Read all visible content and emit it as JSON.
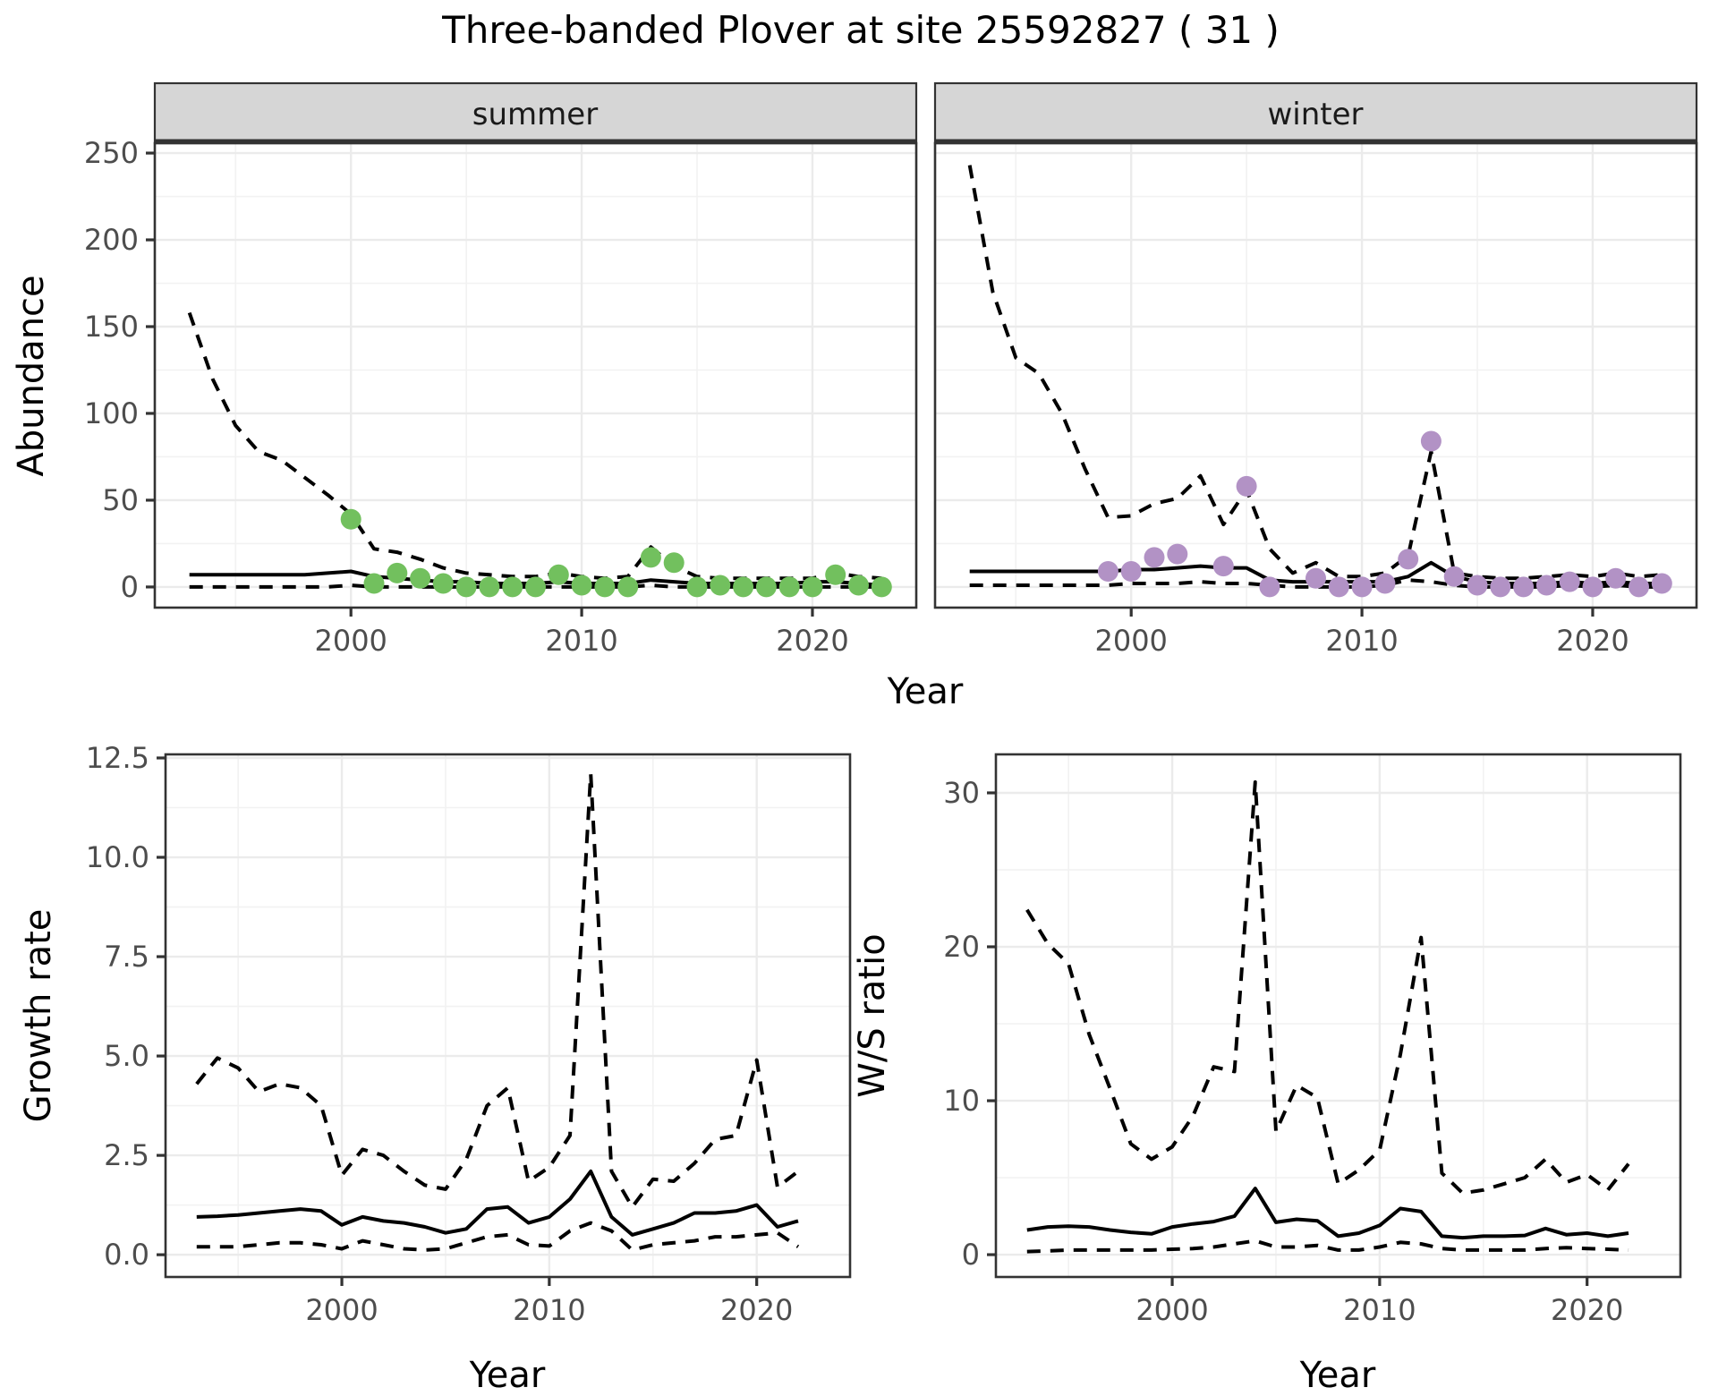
{
  "title": "Three-banded Plover at site 25592827 ( 31 )",
  "axes": {
    "y_top": "Abundance",
    "x_shared": "Year",
    "y_growth": "Growth rate",
    "x_growth": "Year",
    "y_ws": "W/S ratio",
    "x_ws": "Year"
  },
  "colors": {
    "summer_point": "#72c05e",
    "winter_point": "#b292c5",
    "line": "#000000",
    "grid_major": "#ebebeb",
    "grid_minor": "#f2f2f2",
    "strip_bg": "#d6d6d6",
    "panel_border": "#333333",
    "tick_text": "#4d4d4d"
  },
  "chart_data": [
    {
      "type": "line",
      "facet_label": "summer",
      "xlabel": "Year",
      "ylabel": "Abundance",
      "ylim": [
        0,
        250
      ],
      "x_tick_values": [
        2000,
        2010,
        2020
      ],
      "x_tick_labels": [
        "2000",
        "2010",
        "2020"
      ],
      "y_tick_values": [
        0,
        50,
        100,
        150,
        200,
        250
      ],
      "y_tick_labels": [
        "0",
        "50",
        "100",
        "150",
        "200",
        "250"
      ],
      "years": [
        1993,
        1994,
        1995,
        1996,
        1997,
        1998,
        1999,
        2000,
        2001,
        2002,
        2003,
        2004,
        2005,
        2006,
        2007,
        2008,
        2009,
        2010,
        2011,
        2012,
        2013,
        2014,
        2015,
        2016,
        2017,
        2018,
        2019,
        2020,
        2021,
        2022,
        2023
      ],
      "series": [
        {
          "name": "median",
          "style": "solid",
          "values": [
            7,
            7,
            7,
            7,
            7,
            7,
            8,
            9,
            6,
            5,
            4,
            3,
            3,
            2,
            2,
            2,
            3,
            2,
            2,
            2,
            4,
            3,
            2,
            2,
            2,
            2,
            2,
            3,
            3,
            2,
            1
          ]
        },
        {
          "name": "upper_ci",
          "style": "dashed",
          "values": [
            158,
            120,
            93,
            78,
            73,
            63,
            53,
            42,
            22,
            20,
            16,
            11,
            8,
            7,
            6,
            6,
            8,
            6,
            5,
            6,
            23,
            12,
            6,
            5,
            5,
            5,
            5,
            5,
            8,
            6,
            5
          ]
        },
        {
          "name": "lower_ci",
          "style": "dashed",
          "values": [
            0,
            0,
            0,
            0,
            0,
            0,
            0,
            1,
            0,
            0,
            0,
            0,
            0,
            0,
            0,
            0,
            0,
            0,
            0,
            0,
            1,
            0,
            0,
            0,
            0,
            0,
            0,
            0,
            0,
            0,
            0
          ]
        }
      ],
      "points": {
        "color_key": "summer_point",
        "years": [
          2000,
          2001,
          2002,
          2003,
          2004,
          2005,
          2006,
          2007,
          2008,
          2009,
          2010,
          2011,
          2012,
          2013,
          2014,
          2015,
          2016,
          2017,
          2018,
          2019,
          2020,
          2021,
          2022,
          2023
        ],
        "values": [
          39,
          2,
          8,
          5,
          2,
          0,
          0,
          0,
          0,
          7,
          1,
          0,
          0,
          17,
          14,
          0,
          1,
          0,
          0,
          0,
          0,
          7,
          1,
          0
        ]
      }
    },
    {
      "type": "line",
      "facet_label": "winter",
      "xlabel": "Year",
      "ylabel": "Abundance",
      "ylim": [
        0,
        250
      ],
      "x_tick_values": [
        2000,
        2010,
        2020
      ],
      "x_tick_labels": [
        "2000",
        "2010",
        "2020"
      ],
      "y_tick_values": [
        0,
        50,
        100,
        150,
        200,
        250
      ],
      "y_tick_labels": [
        "0",
        "50",
        "100",
        "150",
        "200",
        "250"
      ],
      "years": [
        1993,
        1994,
        1995,
        1996,
        1997,
        1998,
        1999,
        2000,
        2001,
        2002,
        2003,
        2004,
        2005,
        2006,
        2007,
        2008,
        2009,
        2010,
        2011,
        2012,
        2013,
        2014,
        2015,
        2016,
        2017,
        2018,
        2019,
        2020,
        2021,
        2022,
        2023
      ],
      "series": [
        {
          "name": "median",
          "style": "solid",
          "values": [
            9,
            9,
            9,
            9,
            9,
            9,
            9,
            10,
            10,
            11,
            12,
            11,
            11,
            4,
            3,
            3,
            3,
            3,
            3,
            6,
            14,
            6,
            3,
            2,
            2,
            2,
            3,
            2,
            3,
            2,
            2
          ]
        },
        {
          "name": "upper_ci",
          "style": "dashed",
          "values": [
            243,
            170,
            132,
            123,
            100,
            68,
            40,
            41,
            48,
            51,
            64,
            36,
            56,
            22,
            8,
            14,
            6,
            6,
            8,
            18,
            78,
            8,
            6,
            5,
            5,
            6,
            7,
            6,
            8,
            6,
            7
          ]
        },
        {
          "name": "lower_ci",
          "style": "dashed",
          "values": [
            1,
            1,
            1,
            1,
            1,
            1,
            1,
            2,
            2,
            2,
            3,
            2,
            2,
            1,
            0,
            0,
            0,
            0,
            1,
            4,
            3,
            1,
            0,
            0,
            0,
            0,
            1,
            0,
            1,
            0,
            0
          ]
        }
      ],
      "points": {
        "color_key": "winter_point",
        "years": [
          1999,
          2000,
          2001,
          2002,
          2004,
          2005,
          2006,
          2008,
          2009,
          2010,
          2011,
          2012,
          2013,
          2014,
          2015,
          2016,
          2017,
          2018,
          2019,
          2020,
          2021,
          2022,
          2023
        ],
        "values": [
          9,
          9,
          17,
          19,
          12,
          58,
          0,
          5,
          0,
          0,
          2,
          16,
          84,
          6,
          1,
          0,
          0,
          1,
          3,
          0,
          5,
          0,
          2
        ]
      }
    },
    {
      "type": "line",
      "facet_label": "",
      "xlabel": "Year",
      "ylabel": "Growth rate",
      "ylim": [
        0,
        12.5
      ],
      "x_tick_values": [
        2000,
        2010,
        2020
      ],
      "x_tick_labels": [
        "2000",
        "2010",
        "2020"
      ],
      "y_tick_values": [
        0,
        2.5,
        5,
        7.5,
        10,
        12.5
      ],
      "y_tick_labels": [
        "0.0",
        "2.5",
        "5.0",
        "7.5",
        "10.0",
        "12.5"
      ],
      "years": [
        1993,
        1994,
        1995,
        1996,
        1997,
        1998,
        1999,
        2000,
        2001,
        2002,
        2003,
        2004,
        2005,
        2006,
        2007,
        2008,
        2009,
        2010,
        2011,
        2012,
        2013,
        2014,
        2015,
        2016,
        2017,
        2018,
        2019,
        2020,
        2021,
        2022
      ],
      "series": [
        {
          "name": "median",
          "style": "solid",
          "values": [
            0.95,
            0.97,
            1.0,
            1.05,
            1.1,
            1.15,
            1.1,
            0.75,
            0.95,
            0.85,
            0.8,
            0.7,
            0.55,
            0.65,
            1.15,
            1.2,
            0.8,
            0.95,
            1.4,
            2.1,
            0.95,
            0.5,
            0.65,
            0.8,
            1.05,
            1.05,
            1.1,
            1.25,
            0.7,
            0.85
          ]
        },
        {
          "name": "upper_ci",
          "style": "dashed",
          "values": [
            4.3,
            4.95,
            4.7,
            4.1,
            4.3,
            4.2,
            3.75,
            2.0,
            2.65,
            2.5,
            2.1,
            1.75,
            1.65,
            2.4,
            3.75,
            4.2,
            1.85,
            2.2,
            3.0,
            12.1,
            2.1,
            1.2,
            1.9,
            1.85,
            2.3,
            2.9,
            3.0,
            4.9,
            1.7,
            2.1
          ]
        },
        {
          "name": "lower_ci",
          "style": "dashed",
          "values": [
            0.2,
            0.2,
            0.2,
            0.25,
            0.3,
            0.3,
            0.25,
            0.15,
            0.35,
            0.25,
            0.15,
            0.12,
            0.15,
            0.3,
            0.45,
            0.5,
            0.25,
            0.22,
            0.6,
            0.8,
            0.6,
            0.12,
            0.25,
            0.3,
            0.35,
            0.45,
            0.45,
            0.5,
            0.55,
            0.2
          ]
        }
      ]
    },
    {
      "type": "line",
      "facet_label": "",
      "xlabel": "Year",
      "ylabel": "W/S ratio",
      "ylim": [
        0,
        30
      ],
      "x_tick_values": [
        2000,
        2010,
        2020
      ],
      "x_tick_labels": [
        "2000",
        "2010",
        "2020"
      ],
      "y_tick_values": [
        0,
        10,
        20,
        30
      ],
      "y_tick_labels": [
        "0",
        "10",
        "20",
        "30"
      ],
      "years": [
        1993,
        1994,
        1995,
        1996,
        1997,
        1998,
        1999,
        2000,
        2001,
        2002,
        2003,
        2004,
        2005,
        2006,
        2007,
        2008,
        2009,
        2010,
        2011,
        2012,
        2013,
        2014,
        2015,
        2016,
        2017,
        2018,
        2019,
        2020,
        2021,
        2022
      ],
      "series": [
        {
          "name": "median",
          "style": "solid",
          "values": [
            1.6,
            1.8,
            1.85,
            1.8,
            1.6,
            1.45,
            1.35,
            1.8,
            2.0,
            2.15,
            2.5,
            4.3,
            2.1,
            2.3,
            2.2,
            1.2,
            1.4,
            1.9,
            3.0,
            2.8,
            1.2,
            1.1,
            1.2,
            1.2,
            1.25,
            1.7,
            1.3,
            1.4,
            1.2,
            1.4
          ]
        },
        {
          "name": "upper_ci",
          "style": "dashed",
          "values": [
            22.4,
            20.2,
            18.9,
            14.3,
            10.8,
            7.2,
            6.2,
            7.0,
            9.0,
            12.2,
            11.9,
            30.7,
            8.0,
            11.0,
            10.2,
            4.6,
            5.5,
            6.8,
            13.0,
            20.6,
            5.3,
            4.0,
            4.2,
            4.6,
            5.0,
            6.2,
            4.7,
            5.2,
            4.2,
            5.9
          ]
        },
        {
          "name": "lower_ci",
          "style": "dashed",
          "values": [
            0.2,
            0.25,
            0.3,
            0.3,
            0.3,
            0.3,
            0.3,
            0.35,
            0.4,
            0.5,
            0.7,
            0.9,
            0.5,
            0.5,
            0.6,
            0.3,
            0.3,
            0.5,
            0.8,
            0.7,
            0.4,
            0.3,
            0.3,
            0.3,
            0.3,
            0.4,
            0.45,
            0.4,
            0.35,
            0.3
          ]
        }
      ]
    }
  ]
}
